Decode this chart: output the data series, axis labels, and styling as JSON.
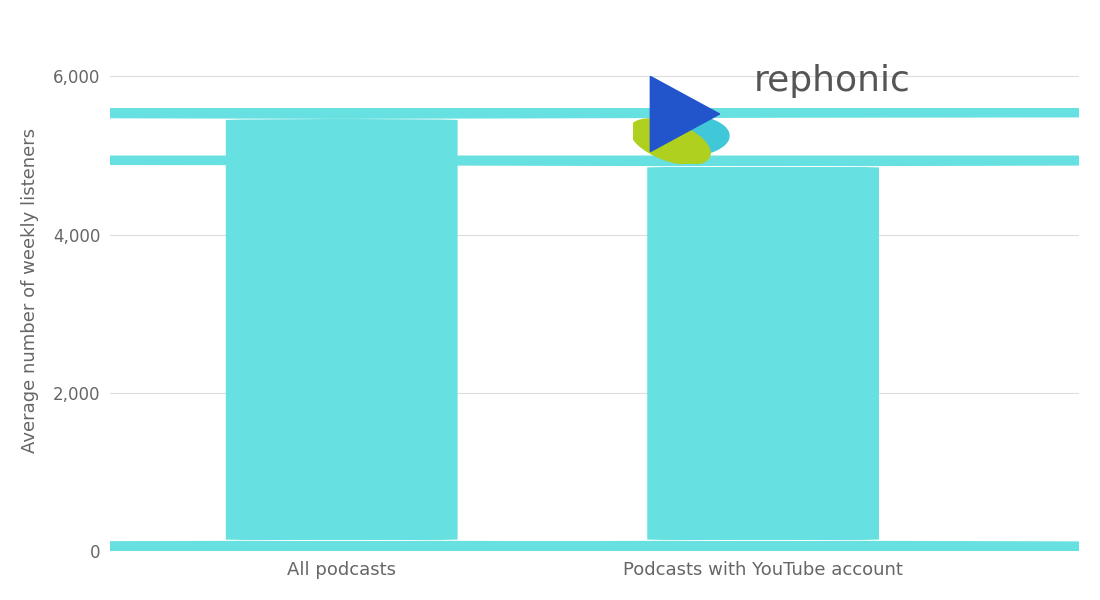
{
  "categories": [
    "All podcasts",
    "Podcasts with YouTube account"
  ],
  "values": [
    5600,
    5000
  ],
  "bar_color": "#66E0E0",
  "ylabel": "Average number of weekly listeners",
  "ylim": [
    0,
    6600
  ],
  "yticks": [
    0,
    2000,
    4000,
    6000
  ],
  "ytick_labels": [
    "0",
    "2,000",
    "4,000",
    "6,000"
  ],
  "grid_color": "#dddddd",
  "tick_color": "#666666",
  "background_color": "#ffffff",
  "bar_width": 0.55,
  "logo_text": "rephonic",
  "logo_text_color": "#555555",
  "logo_text_size": 26,
  "ylabel_fontsize": 13,
  "xtick_fontsize": 13,
  "ytick_fontsize": 12,
  "xlim": [
    -0.55,
    1.75
  ]
}
